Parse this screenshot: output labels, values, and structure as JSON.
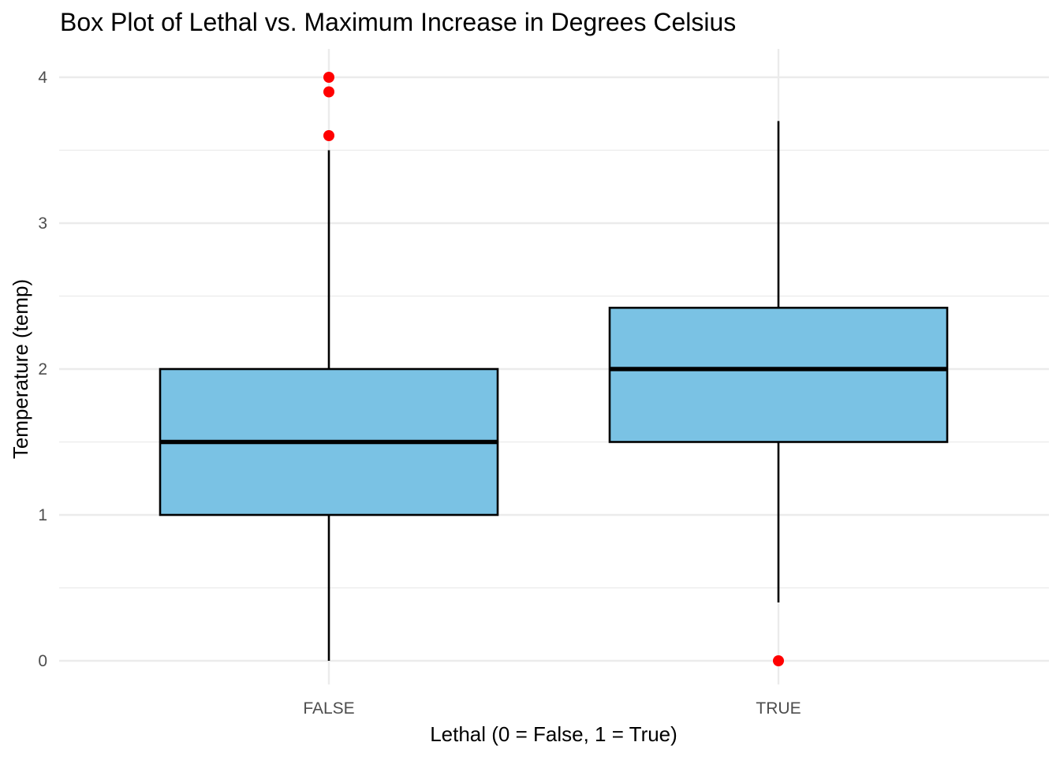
{
  "chart_data": {
    "type": "box",
    "title": "Box Plot of Lethal vs. Maximum Increase in Degrees Celsius",
    "xlabel": "Lethal (0 = False, 1 = True)",
    "ylabel": "Temperature (temp)",
    "categories": [
      "FALSE",
      "TRUE"
    ],
    "ylim": [
      -0.15,
      4.2
    ],
    "yticks": [
      0,
      1,
      2,
      3,
      4
    ],
    "yticks_minor": [
      0.5,
      1.5,
      2.5,
      3.5
    ],
    "grid": true,
    "box_fill": "#7AC2E4",
    "box_stroke": "#000000",
    "outlier_color": "#FF0000",
    "boxes": [
      {
        "category": "FALSE",
        "whisker_low": 0,
        "q1": 1.0,
        "median": 1.5,
        "q3": 2.0,
        "whisker_high": 3.5,
        "outliers": [
          3.6,
          3.9,
          4.0
        ]
      },
      {
        "category": "TRUE",
        "whisker_low": 0.4,
        "q1": 1.5,
        "median": 2.0,
        "q3": 2.42,
        "whisker_high": 3.7,
        "outliers": [
          0
        ]
      }
    ]
  }
}
